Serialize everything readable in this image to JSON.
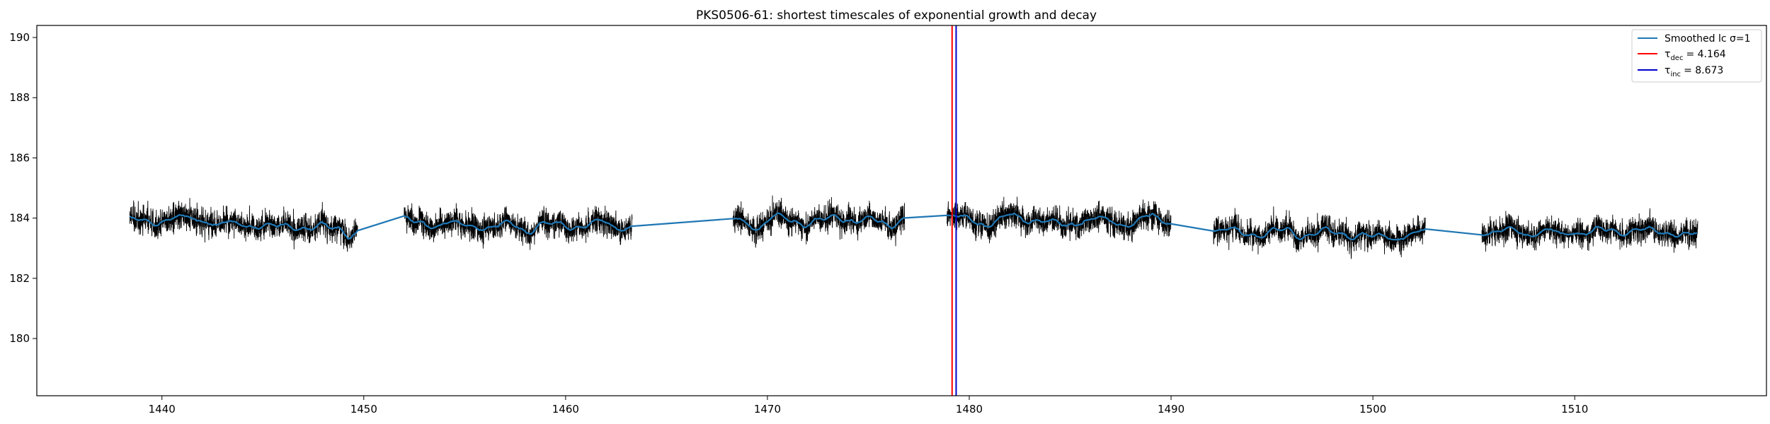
{
  "chart_data": {
    "type": "line",
    "title": "PKS0506-61: shortest timescales of exponential growth and decay",
    "xlabel": "",
    "ylabel": "",
    "xlim": [
      1433.8,
      1519.5
    ],
    "ylim": [
      178.1,
      190.4
    ],
    "x_ticks": [
      1440,
      1450,
      1460,
      1470,
      1480,
      1490,
      1500,
      1510
    ],
    "y_ticks": [
      180,
      182,
      184,
      186,
      188,
      190
    ],
    "grid": false,
    "legend_position": "top-right",
    "segments": [
      {
        "x_start": 1438.4,
        "x_end": 1449.7,
        "mean": 183.85
      },
      {
        "x_start": 1452.0,
        "x_end": 1463.3,
        "mean": 183.9
      },
      {
        "x_start": 1468.3,
        "x_end": 1476.8,
        "mean": 183.95
      },
      {
        "x_start": 1478.9,
        "x_end": 1490.0,
        "mean": 183.95
      },
      {
        "x_start": 1492.1,
        "x_end": 1502.6,
        "mean": 183.65
      },
      {
        "x_start": 1505.4,
        "x_end": 1516.1,
        "mean": 183.7
      }
    ],
    "series": [
      {
        "name": "",
        "role": "raw light curve",
        "color": "#000000",
        "noise_std": 0.45
      },
      {
        "name": "Smoothed lc σ=1",
        "role": "smoothed",
        "color": "#1f77b4"
      }
    ],
    "vlines": [
      {
        "label_sym": "τ",
        "label_sub": "dec",
        "label_value": "= 4.164",
        "x": 1479.15,
        "color": "#ff0000"
      },
      {
        "label_sym": "τ",
        "label_sub": "inc",
        "label_value": "= 8.673",
        "x": 1479.35,
        "color": "#0000cc"
      }
    ]
  }
}
